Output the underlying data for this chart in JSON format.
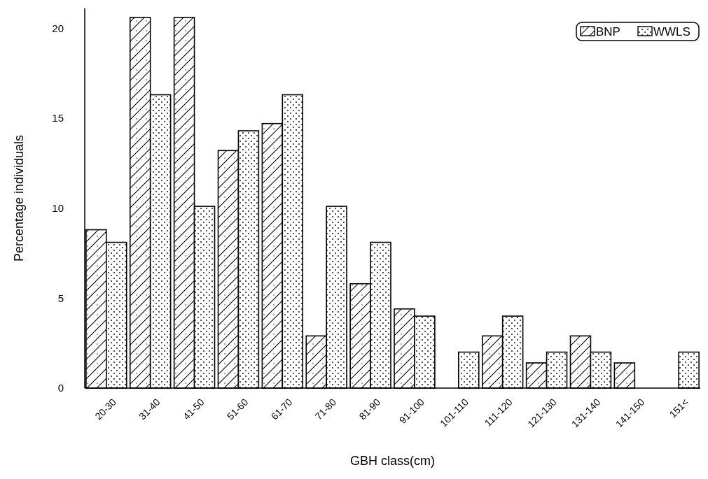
{
  "chart_data": {
    "type": "bar",
    "xlabel": "GBH class(cm)",
    "ylabel": "Percentage individuals",
    "categories": [
      "20-30",
      "31-40",
      "41-50",
      "51-60",
      "61-70",
      "71-80",
      "81-90",
      "91-100",
      "101-110",
      "111-120",
      "121-130",
      "131-140",
      "141-150",
      "151<"
    ],
    "series": [
      {
        "name": "BNP",
        "color": "#000000",
        "values": [
          8.8,
          20.6,
          20.6,
          13.2,
          14.7,
          2.9,
          5.8,
          4.4,
          null,
          2.9,
          1.4,
          2.9,
          1.4,
          null
        ]
      },
      {
        "name": "WWLS",
        "color": "#000000",
        "values": [
          8.1,
          16.3,
          10.1,
          14.3,
          16.3,
          10.1,
          8.1,
          4.0,
          2.0,
          4.0,
          2.0,
          2.0,
          null,
          2.0
        ]
      }
    ],
    "ylim": [
      0,
      21.1
    ],
    "yticks": [
      0,
      5,
      10,
      15,
      20
    ],
    "grid": false,
    "legend": "top right"
  }
}
